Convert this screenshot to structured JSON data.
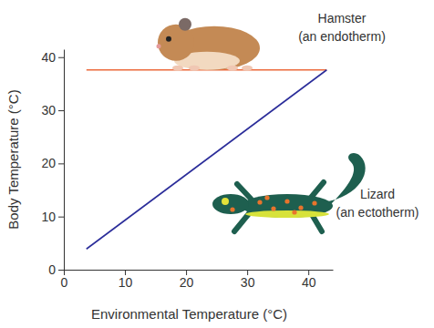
{
  "chart_data": {
    "type": "line",
    "x_label": "Environmental Temperature (°C)",
    "y_label": "Body Temperature (°C)",
    "x": [
      3.7,
      43
    ],
    "series": [
      {
        "color": "#ec6a3c",
        "values": [
          37.6,
          37.6
        ],
        "annotation": [
          "Hamster",
          "(an endotherm)"
        ]
      },
      {
        "color": "#2b2d9a",
        "values": [
          3.9,
          37.6
        ],
        "annotation": [
          "Lizard",
          "(an ectotherm)"
        ]
      }
    ],
    "xlim": [
      0,
      44
    ],
    "ylim": [
      0,
      41.5
    ],
    "xticks": [
      0,
      10,
      20,
      30,
      40
    ],
    "yticks": [
      0,
      10,
      20,
      30,
      40
    ],
    "grid": false
  }
}
